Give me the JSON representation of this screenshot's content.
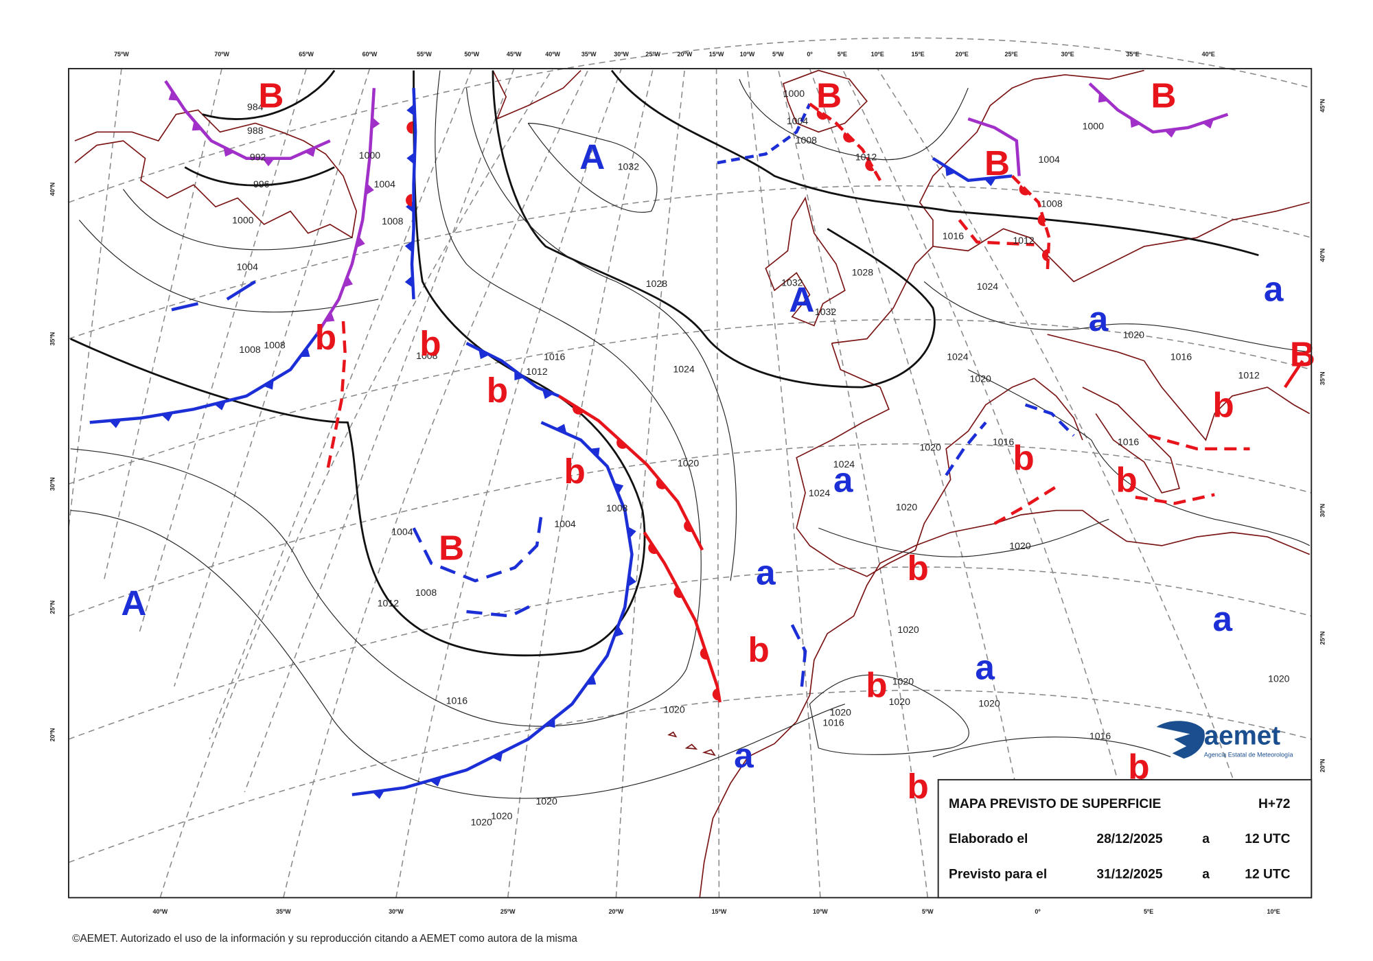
{
  "map": {
    "top_longitudes": [
      "75ºW",
      "70ºW",
      "65ºW",
      "60ºW",
      "55ºW",
      "50ºW",
      "45ºW",
      "40ºW",
      "35ºW",
      "30ºW",
      "25ºW",
      "20ºW",
      "15ºW",
      "10ºW",
      "5ºW",
      "0º",
      "5ºE",
      "10ºE",
      "15ºE",
      "20ºE",
      "25ºE",
      "30ºE",
      "35ºE",
      "40ºE"
    ],
    "bottom_longitudes": [
      "40ºW",
      "35ºW",
      "30ºW",
      "25ºW",
      "20ºW",
      "15ºW",
      "10ºW",
      "5ºW",
      "0º",
      "5ºE",
      "10ºE"
    ],
    "left_latitudes": [
      "40ºN",
      "35ºN",
      "30ºN",
      "25ºN",
      "20ºN"
    ],
    "right_latitudes": [
      "45ºN",
      "40ºN",
      "35ºN",
      "30ºN",
      "25ºN",
      "20ºN"
    ],
    "pressure_centers": [
      {
        "label": "B",
        "color": "#e8141b"
      },
      {
        "label": "B",
        "color": "#e8141b"
      },
      {
        "label": "B",
        "color": "#e8141b"
      },
      {
        "label": "B",
        "color": "#e8141b"
      },
      {
        "label": "B",
        "color": "#e8141b"
      },
      {
        "label": "A",
        "color": "#1c2fd6"
      },
      {
        "label": "A",
        "color": "#1c2fd6"
      },
      {
        "label": "A",
        "color": "#1c2fd6"
      },
      {
        "label": "a",
        "color": "#1c2fd6"
      },
      {
        "label": "a",
        "color": "#1c2fd6"
      },
      {
        "label": "a",
        "color": "#1c2fd6"
      },
      {
        "label": "a",
        "color": "#1c2fd6"
      },
      {
        "label": "a",
        "color": "#1c2fd6"
      },
      {
        "label": "a",
        "color": "#1c2fd6"
      },
      {
        "label": "a",
        "color": "#1c2fd6"
      },
      {
        "label": "b",
        "color": "#e8141b"
      },
      {
        "label": "b",
        "color": "#e8141b"
      },
      {
        "label": "b",
        "color": "#e8141b"
      },
      {
        "label": "b",
        "color": "#e8141b"
      },
      {
        "label": "b",
        "color": "#e8141b"
      },
      {
        "label": "b",
        "color": "#e8141b"
      },
      {
        "label": "b",
        "color": "#e8141b"
      },
      {
        "label": "b",
        "color": "#e8141b"
      },
      {
        "label": "b",
        "color": "#e8141b"
      },
      {
        "label": "b",
        "color": "#e8141b"
      },
      {
        "label": "b",
        "color": "#e8141b"
      },
      {
        "label": "b",
        "color": "#e8141b"
      }
    ],
    "isobar_labels": [
      "984",
      "988",
      "992",
      "996",
      "1000",
      "1004",
      "1008",
      "1008",
      "1000",
      "1004",
      "1008",
      "1032",
      "1028",
      "1024",
      "1020",
      "1016",
      "1012",
      "1008",
      "1008",
      "1004",
      "1004",
      "1008",
      "1012",
      "1016",
      "1020",
      "1020",
      "1020",
      "1020",
      "1000",
      "1004",
      "1008",
      "1012",
      "1028",
      "1032",
      "1032",
      "1024",
      "1024",
      "1020",
      "1020",
      "1016",
      "1012",
      "1016",
      "1016",
      "1020",
      "1024",
      "1024",
      "1020",
      "1020",
      "1020",
      "1020",
      "1020",
      "1020",
      "1020",
      "1020",
      "1016",
      "1016",
      "1000",
      "1004",
      "1008",
      "1016",
      "1012"
    ],
    "info_box": {
      "title": "MAPA PREVISTO DE SUPERFICIE",
      "horizon": "H+72",
      "rows": [
        [
          "Elaborado el",
          "28/12/2025",
          "a",
          "12 UTC"
        ],
        [
          "Previsto para el",
          "31/12/2025",
          "a",
          "12 UTC"
        ]
      ]
    },
    "logo": {
      "name": "aemet",
      "subtitle": "Agencia Estatal de Meteorología"
    },
    "footer": "©AEMET. Autorizado el uso de la información y su reproducción citando a AEMET como autora de la misma"
  }
}
